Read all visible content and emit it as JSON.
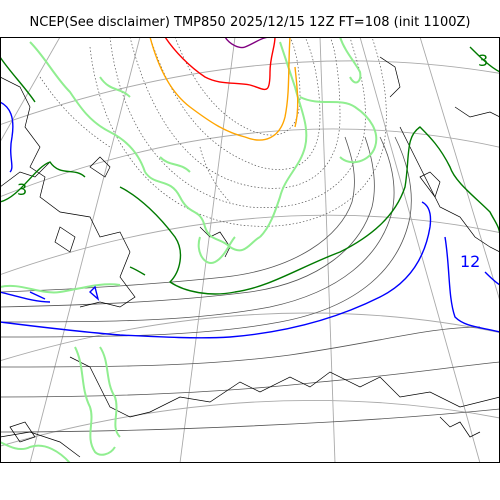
{
  "title": "NCEP(See disclaimer) TMP850 2025/12/15 12Z FT=108 (init 1100Z)",
  "contour_labels": [
    {
      "text": "3",
      "color": "#007a00"
    },
    {
      "text": "3",
      "color": "#007a00"
    },
    {
      "text": "12",
      "color": "#0000ff"
    }
  ],
  "colors": {
    "coastline": "#000000",
    "graticule": "#aaaaaa",
    "dotted_isotherm": "#555555",
    "solid_isotherm": "#555555",
    "isotherm_0C": "#90ee90",
    "isotherm_3C": "#007a00",
    "isotherm_12C": "#0000ff",
    "isotherm_orange": "#ffa500",
    "isotherm_red": "#ff0000",
    "isotherm_purple": "#800080"
  }
}
